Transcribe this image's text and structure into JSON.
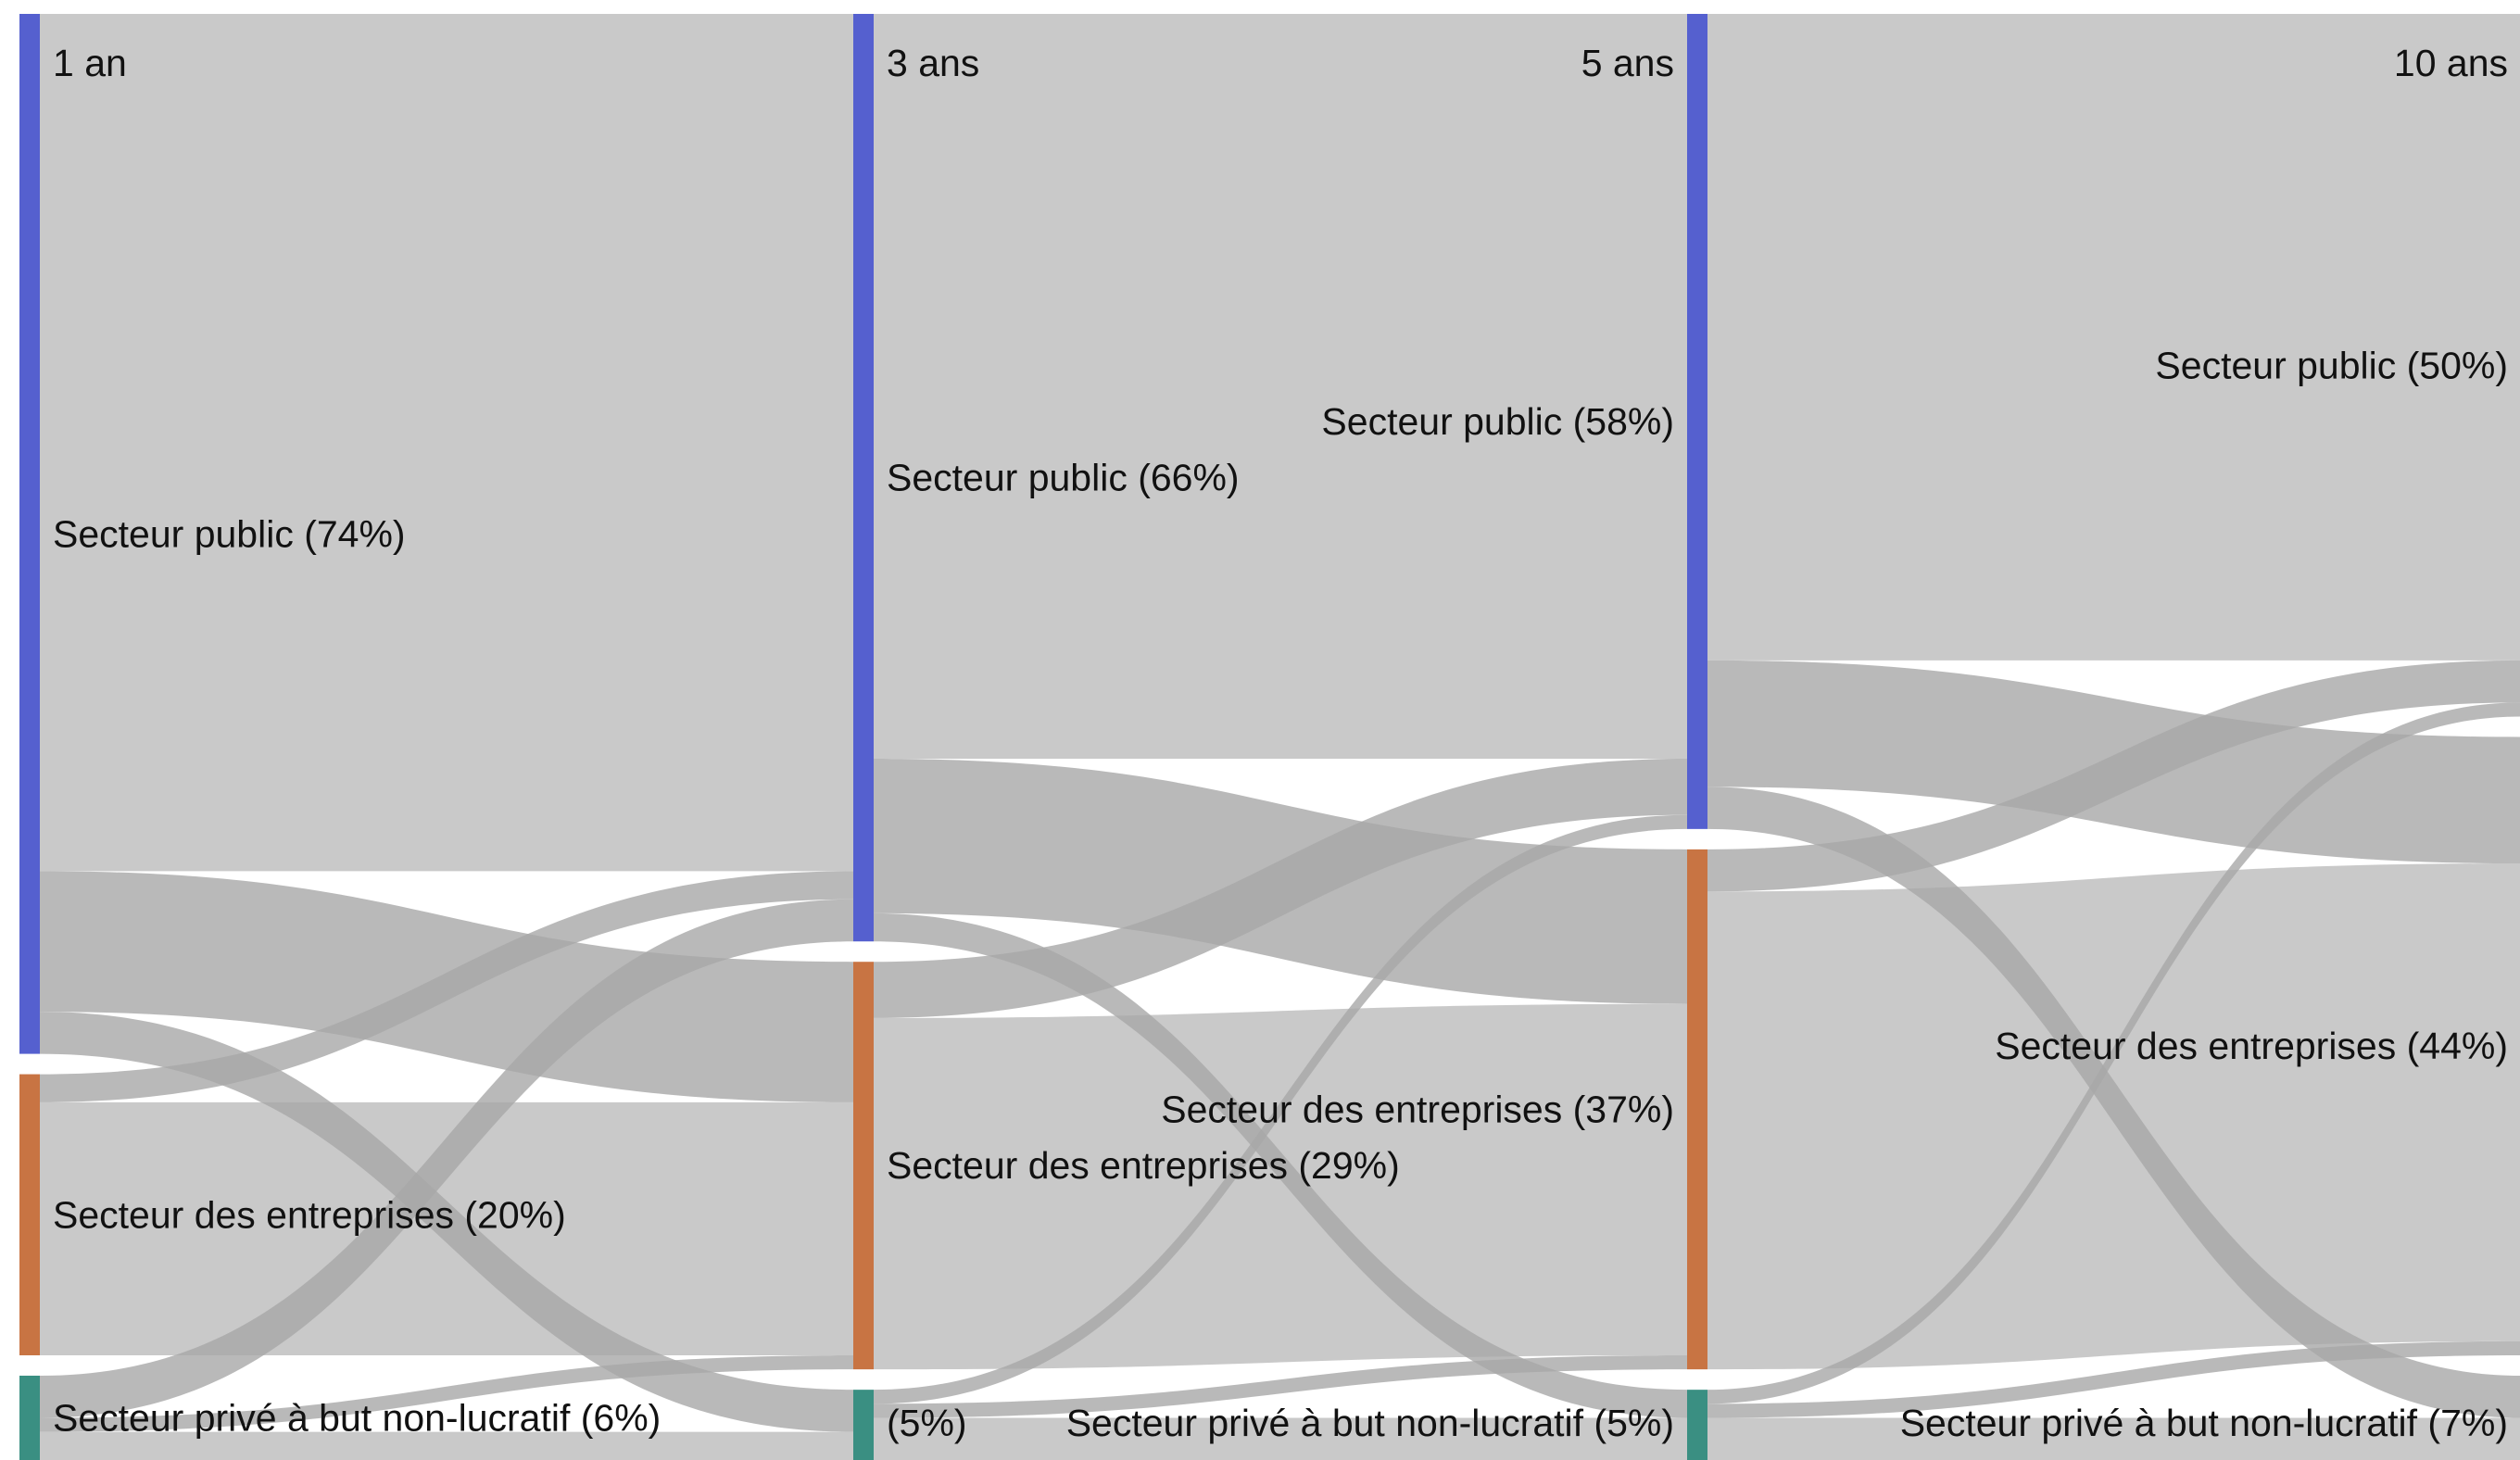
{
  "chart_data": {
    "type": "sankey",
    "title": "",
    "stages": [
      "1 an",
      "3 ans",
      "5 ans",
      "10 ans"
    ],
    "categories": [
      "Secteur public",
      "Secteur des entreprises",
      "Secteur privé à but non-lucratif"
    ],
    "colors": {
      "Secteur public": "#5560cf",
      "Secteur des entreprises": "#c87443",
      "Secteur privé à but non-lucratif": "#3a8f82",
      "link": "#a8a8a8"
    },
    "nodes": [
      {
        "stage": 0,
        "category": 0,
        "share": 74,
        "label": "Secteur public (74%)"
      },
      {
        "stage": 0,
        "category": 1,
        "share": 20,
        "label": "Secteur des entreprises (20%)"
      },
      {
        "stage": 0,
        "category": 2,
        "share": 6,
        "label": "Secteur privé à but non-lucratif (6%)"
      },
      {
        "stage": 1,
        "category": 0,
        "share": 66,
        "label": "Secteur public (66%)"
      },
      {
        "stage": 1,
        "category": 1,
        "share": 29,
        "label": "Secteur des entreprises (29%)"
      },
      {
        "stage": 1,
        "category": 2,
        "share": 5,
        "label": "(5%)"
      },
      {
        "stage": 2,
        "category": 0,
        "share": 58,
        "label": "Secteur public (58%)"
      },
      {
        "stage": 2,
        "category": 1,
        "share": 37,
        "label": "Secteur des entreprises (37%)"
      },
      {
        "stage": 2,
        "category": 2,
        "share": 5,
        "label": "Secteur privé à but non-lucratif (5%)"
      },
      {
        "stage": 3,
        "category": 0,
        "share": 50,
        "label": "Secteur public (50%)"
      },
      {
        "stage": 3,
        "category": 1,
        "share": 44,
        "label": "Secteur des entreprises (44%)"
      },
      {
        "stage": 3,
        "category": 2,
        "share": 7,
        "label": "Secteur privé à but non-lucratif (7%)"
      }
    ],
    "flows": [
      {
        "from_stage": 0,
        "source": 0,
        "target": 0,
        "value": 61
      },
      {
        "from_stage": 0,
        "source": 0,
        "target": 1,
        "value": 10
      },
      {
        "from_stage": 0,
        "source": 0,
        "target": 2,
        "value": 3
      },
      {
        "from_stage": 0,
        "source": 1,
        "target": 0,
        "value": 2
      },
      {
        "from_stage": 0,
        "source": 1,
        "target": 1,
        "value": 18
      },
      {
        "from_stage": 0,
        "source": 2,
        "target": 0,
        "value": 3
      },
      {
        "from_stage": 0,
        "source": 2,
        "target": 1,
        "value": 1
      },
      {
        "from_stage": 0,
        "source": 2,
        "target": 2,
        "value": 2
      },
      {
        "from_stage": 1,
        "source": 0,
        "target": 0,
        "value": 53
      },
      {
        "from_stage": 1,
        "source": 0,
        "target": 1,
        "value": 11
      },
      {
        "from_stage": 1,
        "source": 0,
        "target": 2,
        "value": 2
      },
      {
        "from_stage": 1,
        "source": 1,
        "target": 0,
        "value": 4
      },
      {
        "from_stage": 1,
        "source": 1,
        "target": 1,
        "value": 25
      },
      {
        "from_stage": 1,
        "source": 2,
        "target": 0,
        "value": 1
      },
      {
        "from_stage": 1,
        "source": 2,
        "target": 1,
        "value": 1
      },
      {
        "from_stage": 1,
        "source": 2,
        "target": 2,
        "value": 3
      },
      {
        "from_stage": 2,
        "source": 0,
        "target": 0,
        "value": 46
      },
      {
        "from_stage": 2,
        "source": 0,
        "target": 1,
        "value": 9
      },
      {
        "from_stage": 2,
        "source": 0,
        "target": 2,
        "value": 3
      },
      {
        "from_stage": 2,
        "source": 1,
        "target": 0,
        "value": 3
      },
      {
        "from_stage": 2,
        "source": 1,
        "target": 1,
        "value": 34
      },
      {
        "from_stage": 2,
        "source": 2,
        "target": 0,
        "value": 1
      },
      {
        "from_stage": 2,
        "source": 2,
        "target": 1,
        "value": 1
      },
      {
        "from_stage": 2,
        "source": 2,
        "target": 2,
        "value": 3
      }
    ]
  }
}
